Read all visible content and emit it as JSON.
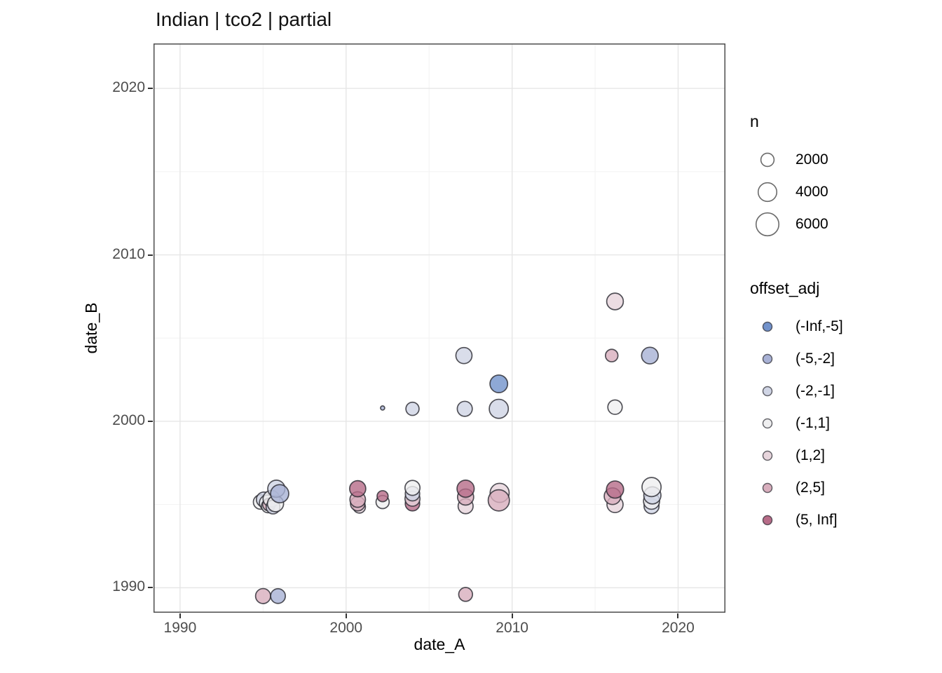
{
  "title": "Indian | tco2 | partial",
  "chart_data": {
    "type": "scatter",
    "title": "Indian | tco2 | partial",
    "xlabel": "date_A",
    "ylabel": "date_B",
    "grid": true,
    "legend_position": "right",
    "x_axis": {
      "min": 1988.4,
      "max": 2022.85,
      "ticks": [
        1990,
        2000,
        2010,
        2020
      ],
      "minor_ticks": [
        1995,
        2005,
        2015
      ]
    },
    "y_axis": {
      "min": 1988.5,
      "max": 2022.7,
      "ticks": [
        1990,
        2000,
        2010,
        2020
      ],
      "minor_ticks": [
        1995,
        2005,
        2015
      ]
    },
    "size_legend": {
      "title": "n",
      "values": [
        2000,
        4000,
        6000
      ]
    },
    "color_legend": {
      "title": "offset_adj",
      "categories": [
        {
          "label": "(-Inf,-5]",
          "color": "#7292cb"
        },
        {
          "label": "(-5,-2]",
          "color": "#a8b1d5"
        },
        {
          "label": "(-2,-1]",
          "color": "#d0d5e5"
        },
        {
          "label": "(-1,1]",
          "color": "#efeff0"
        },
        {
          "label": "(1,2]",
          "color": "#e7d5dc"
        },
        {
          "label": "(2,5]",
          "color": "#d8aebd"
        },
        {
          "label": "(5, Inf]",
          "color": "#b76c88"
        }
      ]
    },
    "points": [
      {
        "x": 1994.85,
        "y": 1995.15,
        "n": 2400,
        "offset_adj": "(-1,1]"
      },
      {
        "x": 1995.05,
        "y": 1995.3,
        "n": 2600,
        "offset_adj": "(-2,-1]"
      },
      {
        "x": 1995.25,
        "y": 1995.1,
        "n": 2800,
        "offset_adj": "(-1,1]"
      },
      {
        "x": 1995.3,
        "y": 1994.9,
        "n": 2000,
        "offset_adj": "(-1,1]"
      },
      {
        "x": 1995.35,
        "y": 1995.0,
        "n": 1800,
        "offset_adj": "(2,5]"
      },
      {
        "x": 1995.5,
        "y": 1995.35,
        "n": 3200,
        "offset_adj": "(-1,1]"
      },
      {
        "x": 1995.6,
        "y": 1994.85,
        "n": 2200,
        "offset_adj": "(-2,-1]"
      },
      {
        "x": 1995.75,
        "y": 1995.05,
        "n": 3000,
        "offset_adj": "(-1,1]"
      },
      {
        "x": 1995.8,
        "y": 1995.95,
        "n": 3400,
        "offset_adj": "(-2,-1]"
      },
      {
        "x": 1996.0,
        "y": 1995.65,
        "n": 3800,
        "offset_adj": "(-5,-2]"
      },
      {
        "x": 1995.0,
        "y": 1989.5,
        "n": 2600,
        "offset_adj": "(2,5]"
      },
      {
        "x": 1995.9,
        "y": 1989.5,
        "n": 2500,
        "offset_adj": "(-5,-2]"
      },
      {
        "x": 2007.2,
        "y": 1989.6,
        "n": 2200,
        "offset_adj": "(2,5]"
      },
      {
        "x": 2000.8,
        "y": 1994.85,
        "n": 1700,
        "offset_adj": "(1,2]"
      },
      {
        "x": 2000.7,
        "y": 1995.05,
        "n": 2400,
        "offset_adj": "(2,5]"
      },
      {
        "x": 2000.7,
        "y": 1995.3,
        "n": 2800,
        "offset_adj": "(2,5]"
      },
      {
        "x": 2000.7,
        "y": 1995.95,
        "n": 3000,
        "offset_adj": "(5, Inf]"
      },
      {
        "x": 2002.2,
        "y": 1995.15,
        "n": 2000,
        "offset_adj": "(-1,1]"
      },
      {
        "x": 2002.2,
        "y": 1995.5,
        "n": 1400,
        "offset_adj": "(5, Inf]"
      },
      {
        "x": 2002.2,
        "y": 2000.8,
        "n": 200,
        "offset_adj": "(-5,-2]"
      },
      {
        "x": 2004.0,
        "y": 1995.05,
        "n": 2400,
        "offset_adj": "(5, Inf]"
      },
      {
        "x": 2004.0,
        "y": 1995.35,
        "n": 2600,
        "offset_adj": "(1,2]"
      },
      {
        "x": 2004.0,
        "y": 1995.65,
        "n": 2400,
        "offset_adj": "(-2,-1]"
      },
      {
        "x": 2004.0,
        "y": 1996.0,
        "n": 2600,
        "offset_adj": "(-1,1]"
      },
      {
        "x": 2004.0,
        "y": 2000.75,
        "n": 2000,
        "offset_adj": "(-2,-1]"
      },
      {
        "x": 2007.2,
        "y": 1994.9,
        "n": 2600,
        "offset_adj": "(1,2]"
      },
      {
        "x": 2007.2,
        "y": 1995.45,
        "n": 3000,
        "offset_adj": "(2,5]"
      },
      {
        "x": 2007.2,
        "y": 1995.95,
        "n": 3400,
        "offset_adj": "(5, Inf]"
      },
      {
        "x": 2007.15,
        "y": 2000.75,
        "n": 2600,
        "offset_adj": "(-2,-1]"
      },
      {
        "x": 2007.1,
        "y": 2003.95,
        "n": 3000,
        "offset_adj": "(-2,-1]"
      },
      {
        "x": 2009.25,
        "y": 1995.7,
        "n": 4200,
        "offset_adj": "(1,2]"
      },
      {
        "x": 2009.2,
        "y": 1995.25,
        "n": 5200,
        "offset_adj": "(2,5]"
      },
      {
        "x": 2009.2,
        "y": 2000.75,
        "n": 4200,
        "offset_adj": "(-2,-1]"
      },
      {
        "x": 2009.2,
        "y": 2002.25,
        "n": 3600,
        "offset_adj": "(-Inf,-5]"
      },
      {
        "x": 2016.2,
        "y": 1995.0,
        "n": 3000,
        "offset_adj": "(1,2]"
      },
      {
        "x": 2016.05,
        "y": 1995.5,
        "n": 3200,
        "offset_adj": "(2,5]"
      },
      {
        "x": 2016.2,
        "y": 1995.9,
        "n": 3400,
        "offset_adj": "(5, Inf]"
      },
      {
        "x": 2016.2,
        "y": 2000.85,
        "n": 2400,
        "offset_adj": "(-1,1]"
      },
      {
        "x": 2016.0,
        "y": 2003.95,
        "n": 1800,
        "offset_adj": "(2,5]"
      },
      {
        "x": 2016.2,
        "y": 2007.2,
        "n": 3200,
        "offset_adj": "(1,2]"
      },
      {
        "x": 2018.4,
        "y": 1994.9,
        "n": 2600,
        "offset_adj": "(-2,-1]"
      },
      {
        "x": 2018.4,
        "y": 1995.2,
        "n": 3000,
        "offset_adj": "(-1,1]"
      },
      {
        "x": 2018.45,
        "y": 1995.55,
        "n": 3400,
        "offset_adj": "(-2,-1]"
      },
      {
        "x": 2018.4,
        "y": 1996.05,
        "n": 4200,
        "offset_adj": "(-1,1]"
      },
      {
        "x": 2018.3,
        "y": 2003.95,
        "n": 3200,
        "offset_adj": "(-5,-2]"
      }
    ]
  },
  "styles": {
    "panel_border": "#4d4d4d",
    "grid_major": "#e6e6e6",
    "grid_minor": "#f2f2f2",
    "point_stroke": "#28282f",
    "tick_color": "#333333",
    "tick_label_color": "#4d4d4d",
    "legend_key_stroke": "#6b6b6b"
  }
}
